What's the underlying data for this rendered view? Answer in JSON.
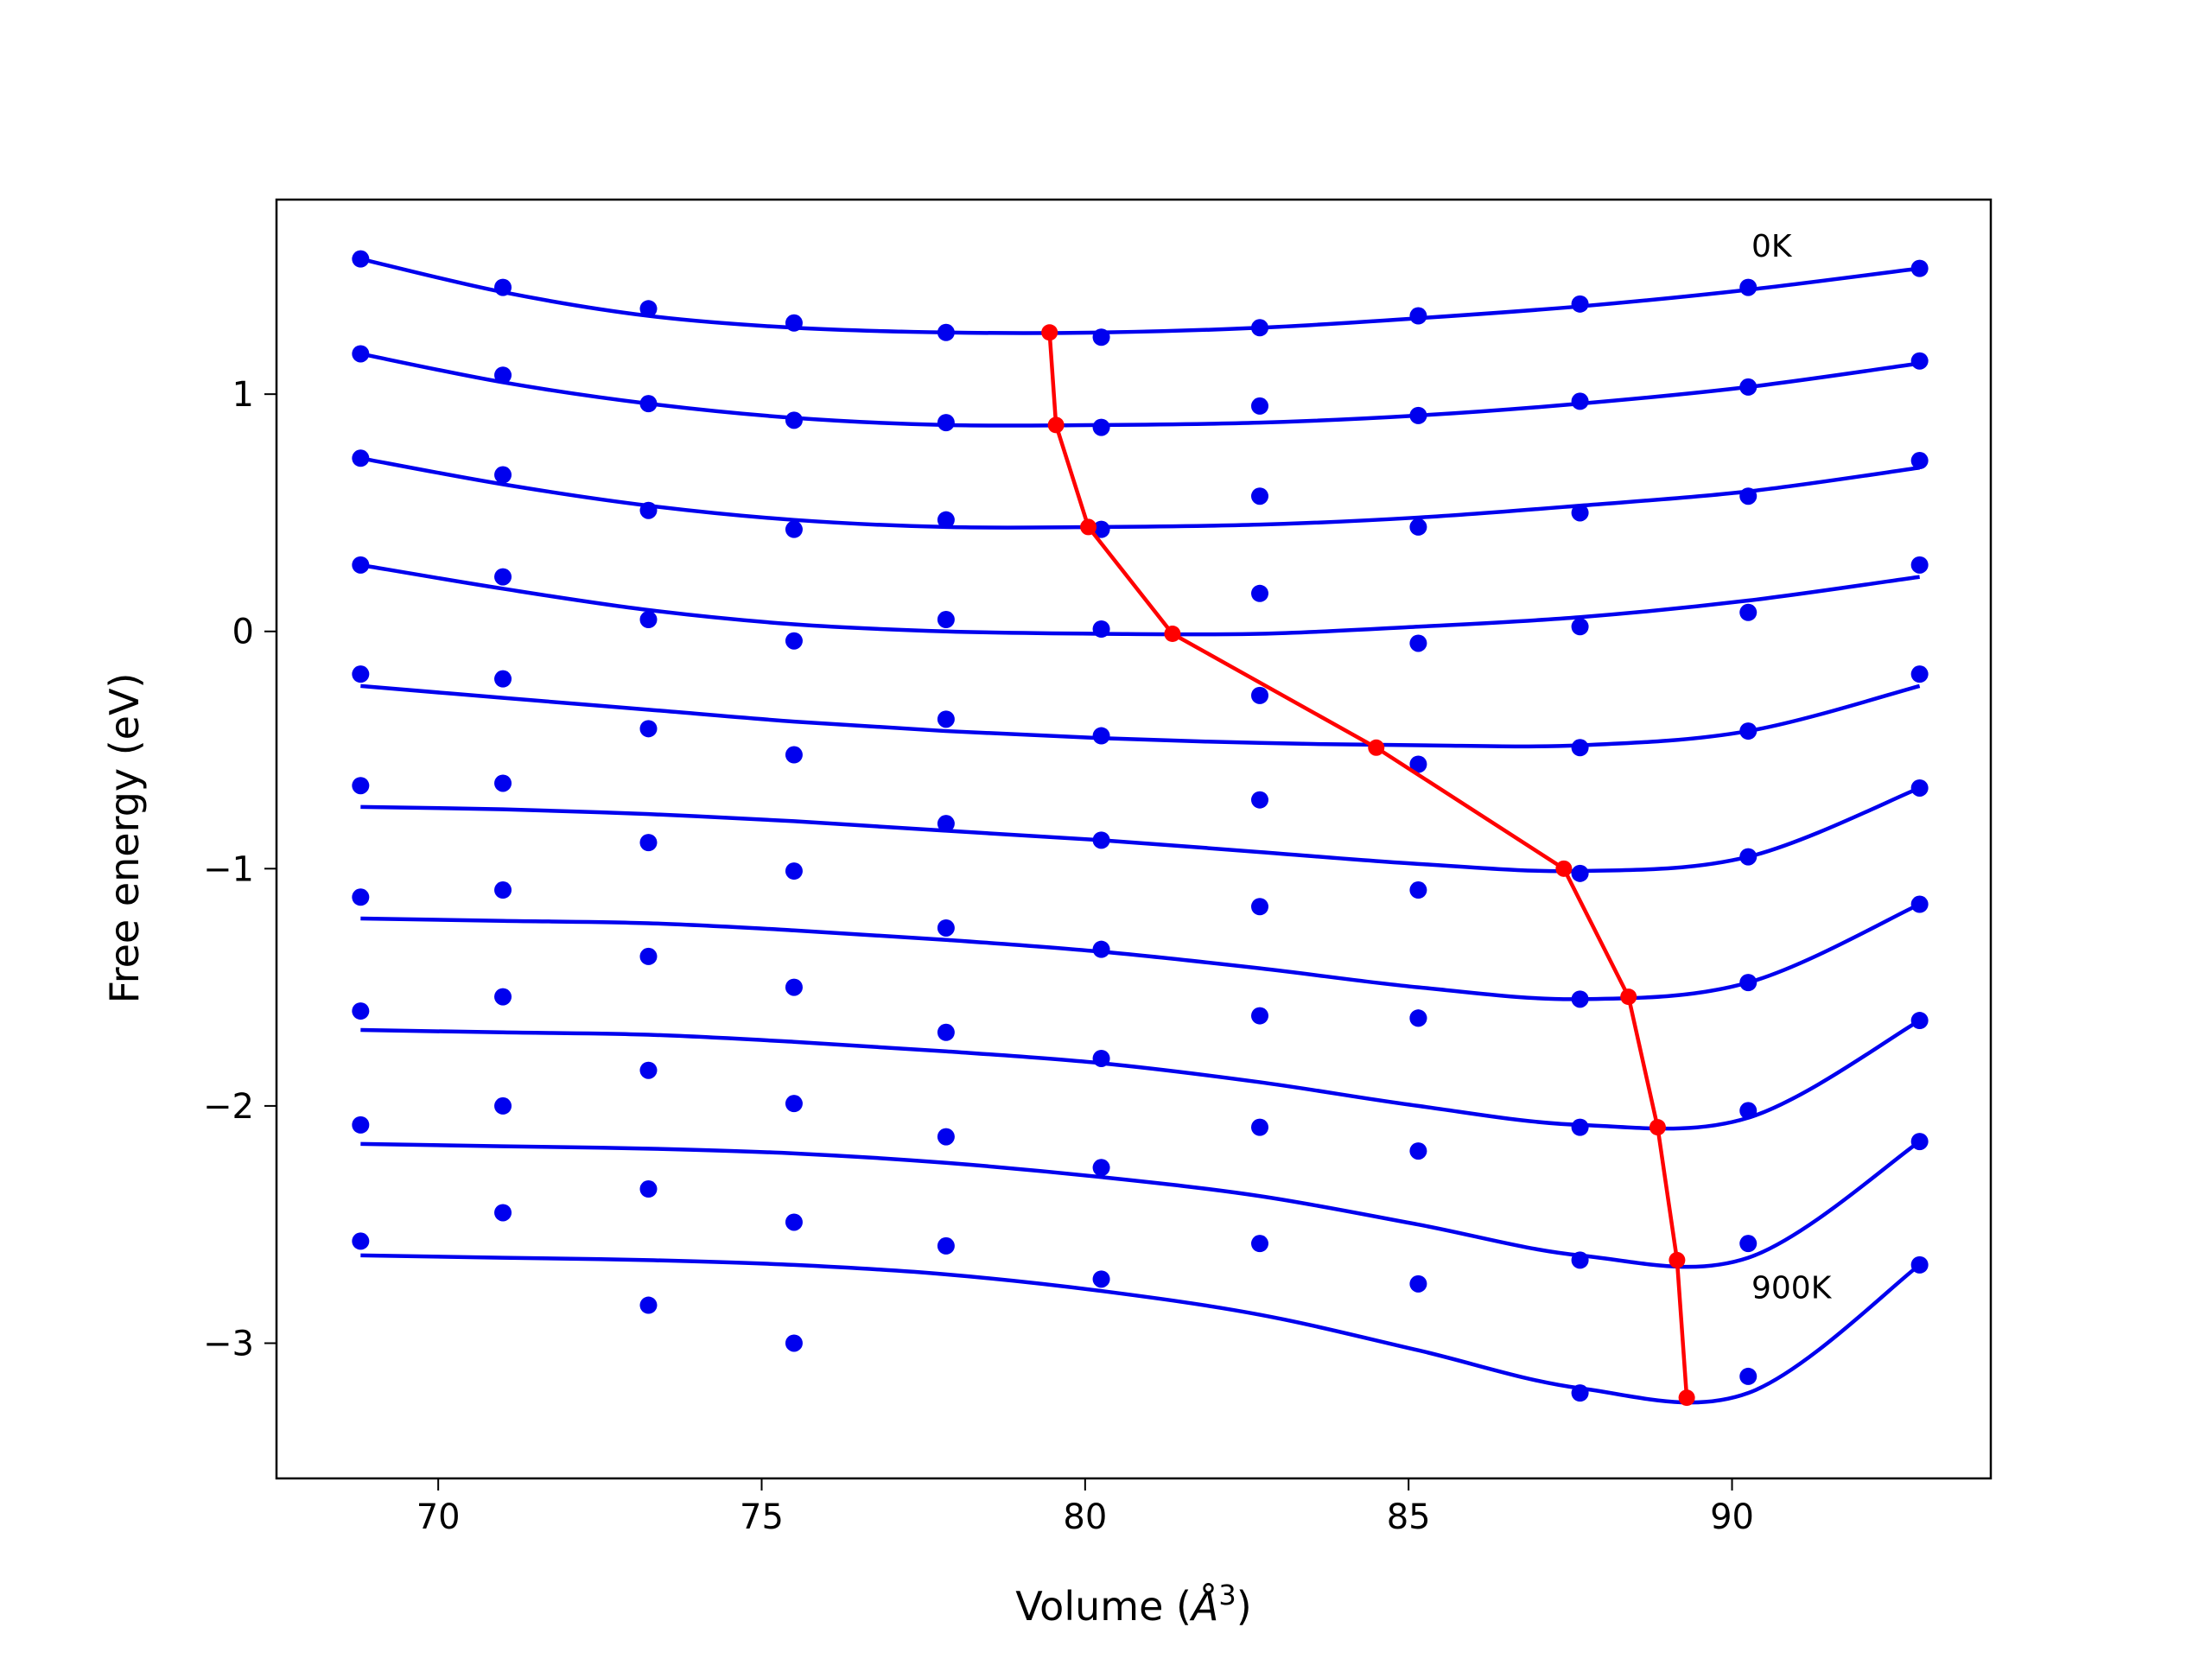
{
  "chart_data": {
    "type": "line",
    "xlabel": "Volume (",
    "xlabel_unit": "Å",
    "xlabel_exp": "3",
    "xlabel_close": ")",
    "ylabel": "Free energy (eV)",
    "xlim": [
      67.5,
      94.0
    ],
    "ylim": [
      -3.57,
      1.82
    ],
    "xticks": [
      70,
      75,
      80,
      85,
      90
    ],
    "yticks": [
      1,
      0,
      -1,
      -2,
      -3
    ],
    "xtick_labels": [
      "70",
      "75",
      "80",
      "85",
      "90"
    ],
    "ytick_labels": [
      "1",
      "0",
      "−1",
      "−2",
      "−3"
    ],
    "grid": false,
    "colors": {
      "points": "#0000ee",
      "fit": "#0000ee",
      "minima": "#ff0000"
    },
    "volumes": [
      68.8,
      71.0,
      73.25,
      75.5,
      77.85,
      80.25,
      82.7,
      85.15,
      87.65,
      90.25,
      92.9
    ],
    "series": [
      {
        "name": "0K",
        "points": [
          1.57,
          1.45,
          1.36,
          1.3,
          1.26,
          1.24,
          1.28,
          1.33,
          1.38,
          1.45,
          1.53
        ],
        "fit": [
          1.57,
          1.43,
          1.33,
          1.28,
          1.26,
          1.26,
          1.28,
          1.32,
          1.37,
          1.44,
          1.53
        ]
      },
      {
        "name": "",
        "points": [
          1.17,
          1.08,
          0.96,
          0.89,
          0.88,
          0.86,
          0.95,
          0.91,
          0.97,
          1.03,
          1.14
        ],
        "fit": [
          1.17,
          1.05,
          0.96,
          0.9,
          0.87,
          0.87,
          0.88,
          0.91,
          0.96,
          1.03,
          1.13
        ]
      },
      {
        "name": "",
        "points": [
          0.73,
          0.66,
          0.51,
          0.43,
          0.47,
          0.43,
          0.57,
          0.44,
          0.5,
          0.57,
          0.72
        ],
        "fit": [
          0.73,
          0.62,
          0.53,
          0.47,
          0.44,
          0.44,
          0.45,
          0.48,
          0.53,
          0.59,
          0.69
        ]
      },
      {
        "name": "",
        "points": [
          0.28,
          0.23,
          0.05,
          -0.04,
          0.05,
          0.01,
          0.16,
          -0.05,
          0.02,
          0.08,
          0.28
        ],
        "fit": [
          0.28,
          0.18,
          0.09,
          0.03,
          0.0,
          -0.01,
          -0.01,
          0.02,
          0.06,
          0.13,
          0.23
        ]
      },
      {
        "name": "",
        "points": [
          -0.18,
          -0.2,
          -0.41,
          -0.52,
          -0.37,
          -0.44,
          -0.27,
          -0.56,
          -0.49,
          -0.42,
          -0.18
        ],
        "fit": [
          -0.23,
          -0.28,
          -0.33,
          -0.38,
          -0.42,
          -0.45,
          -0.47,
          -0.48,
          -0.48,
          -0.42,
          -0.23
        ]
      },
      {
        "name": "",
        "points": [
          -0.65,
          -0.64,
          -0.89,
          -1.01,
          -0.81,
          -0.88,
          -0.71,
          -1.09,
          -1.02,
          -0.95,
          -0.66
        ],
        "fit": [
          -0.74,
          -0.75,
          -0.77,
          -0.8,
          -0.84,
          -0.88,
          -0.93,
          -0.98,
          -1.01,
          -0.95,
          -0.66
        ]
      },
      {
        "name": "",
        "points": [
          -1.12,
          -1.09,
          -1.37,
          -1.5,
          -1.25,
          -1.34,
          -1.16,
          -1.63,
          -1.55,
          -1.48,
          -1.15
        ],
        "fit": [
          -1.21,
          -1.22,
          -1.23,
          -1.26,
          -1.3,
          -1.35,
          -1.42,
          -1.5,
          -1.55,
          -1.48,
          -1.15
        ]
      },
      {
        "name": "",
        "points": [
          -1.6,
          -1.54,
          -1.85,
          -1.99,
          -1.69,
          -1.8,
          -1.62,
          -1.63,
          -2.09,
          -2.02,
          -1.64
        ],
        "fit": [
          -1.68,
          -1.69,
          -1.7,
          -1.73,
          -1.77,
          -1.82,
          -1.9,
          -2.0,
          -2.08,
          -2.05,
          -1.64
        ]
      },
      {
        "name": "",
        "points": [
          -2.08,
          -2.0,
          -2.35,
          -2.49,
          -2.13,
          -2.26,
          -2.09,
          -2.19,
          -2.65,
          -2.58,
          -2.15
        ],
        "fit": [
          -2.16,
          -2.17,
          -2.18,
          -2.2,
          -2.24,
          -2.3,
          -2.38,
          -2.5,
          -2.63,
          -2.64,
          -2.15
        ]
      },
      {
        "name": "900K",
        "points": [
          -2.57,
          -2.45,
          -2.84,
          -3.0,
          -2.59,
          -2.73,
          -2.58,
          -2.75,
          -3.21,
          -3.14,
          -2.67
        ],
        "fit": [
          -2.63,
          -2.64,
          -2.65,
          -2.67,
          -2.71,
          -2.78,
          -2.88,
          -3.03,
          -3.19,
          -3.21,
          -2.67
        ]
      }
    ],
    "minima": {
      "x": [
        79.45,
        79.55,
        80.05,
        81.35,
        84.5,
        87.4,
        88.4,
        88.85,
        89.15,
        89.3
      ],
      "y": [
        1.26,
        0.87,
        0.44,
        -0.01,
        -0.49,
        -1.0,
        -1.54,
        -2.09,
        -2.65,
        -3.23
      ]
    },
    "annotations": [
      {
        "text": "0K",
        "x": 90.3,
        "y": 1.58
      },
      {
        "text": "900K",
        "x": 90.3,
        "y": -2.81
      }
    ]
  }
}
